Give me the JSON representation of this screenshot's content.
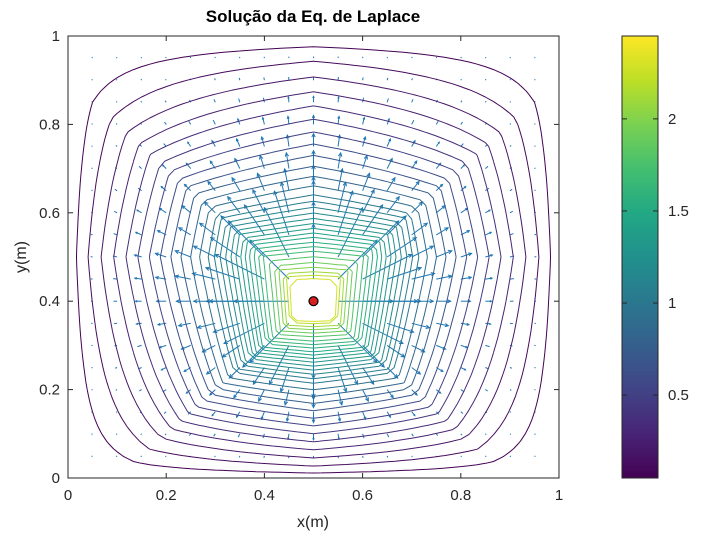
{
  "chart_data": {
    "type": "contour",
    "title": "Solução da Eq. de Laplace",
    "xlabel": "x(m)",
    "ylabel": "y(m)",
    "xlim": [
      0,
      1
    ],
    "ylim": [
      0,
      1
    ],
    "xticks": [
      "0",
      "0.2",
      "0.4",
      "0.6",
      "0.8",
      "1"
    ],
    "yticks": [
      "0",
      "0.2",
      "0.4",
      "0.6",
      "0.8",
      "1"
    ],
    "grid": false,
    "colormap": "viridis",
    "colorbar": {
      "range": [
        0.05,
        2.45
      ],
      "ticks": [
        "0.5",
        "1",
        "1.5",
        "2"
      ],
      "tick_values": [
        0.5,
        1,
        1.5,
        2
      ]
    },
    "source_point": {
      "x": 0.5,
      "y": 0.4,
      "color": "#d62020"
    },
    "contour_levels": [
      0.05,
      0.12,
      0.2,
      0.28,
      0.36,
      0.44,
      0.52,
      0.6,
      0.68,
      0.76,
      0.84,
      0.92,
      1.0,
      1.06,
      1.12,
      1.18,
      1.24,
      1.3,
      1.36,
      1.42,
      1.48,
      1.55,
      1.62,
      1.7,
      1.8,
      1.9,
      2.0,
      2.1,
      2.2,
      2.3
    ],
    "quiver": {
      "spacing": 0.05,
      "color": "#1f77b4",
      "direction": "outward"
    }
  }
}
